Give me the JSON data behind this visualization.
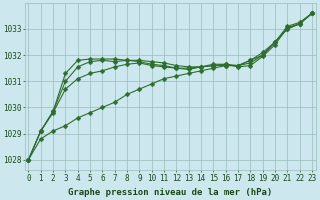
{
  "xlabel": "Graphe pression niveau de la mer (hPa)",
  "bg_color": "#cce8ee",
  "grid_color": "#99bbbb",
  "line_color": "#2d6e2d",
  "marker_color": "#2d6e2d",
  "ylim": [
    1027.6,
    1034.0
  ],
  "xlim": [
    -0.3,
    23.3
  ],
  "yticks": [
    1028,
    1029,
    1030,
    1031,
    1032,
    1033
  ],
  "xticks": [
    0,
    1,
    2,
    3,
    4,
    5,
    6,
    7,
    8,
    9,
    10,
    11,
    12,
    13,
    14,
    15,
    16,
    17,
    18,
    19,
    20,
    21,
    22,
    23
  ],
  "series": [
    [
      1028.0,
      1028.8,
      1029.1,
      1029.3,
      1029.6,
      1029.8,
      1030.0,
      1030.2,
      1030.5,
      1030.7,
      1030.9,
      1031.1,
      1031.2,
      1031.3,
      1031.4,
      1031.5,
      1031.6,
      1031.6,
      1031.8,
      1032.0,
      1032.5,
      1033.0,
      1033.2,
      1033.6
    ],
    [
      1028.0,
      1029.1,
      1029.8,
      1030.7,
      1031.1,
      1031.3,
      1031.4,
      1031.55,
      1031.65,
      1031.7,
      1031.6,
      1031.55,
      1031.5,
      1031.5,
      1031.55,
      1031.6,
      1031.6,
      1031.6,
      1031.8,
      1032.1,
      1032.5,
      1033.0,
      1033.2,
      1033.6
    ],
    [
      1028.0,
      1029.1,
      1029.85,
      1031.0,
      1031.55,
      1031.75,
      1031.8,
      1031.75,
      1031.8,
      1031.8,
      1031.75,
      1031.7,
      1031.6,
      1031.55,
      1031.55,
      1031.6,
      1031.65,
      1031.6,
      1031.7,
      1032.0,
      1032.5,
      1033.1,
      1033.25,
      1033.6
    ],
    [
      1028.0,
      1029.1,
      1029.85,
      1031.3,
      1031.8,
      1031.85,
      1031.85,
      1031.85,
      1031.8,
      1031.75,
      1031.65,
      1031.6,
      1031.5,
      1031.45,
      1031.55,
      1031.65,
      1031.65,
      1031.55,
      1031.6,
      1031.95,
      1032.4,
      1033.05,
      1033.2,
      1033.6
    ]
  ],
  "marker_size": 2.5,
  "line_width": 0.8,
  "font_color": "#1a4a1a",
  "font_size_label": 6.5,
  "font_size_tick": 5.5
}
